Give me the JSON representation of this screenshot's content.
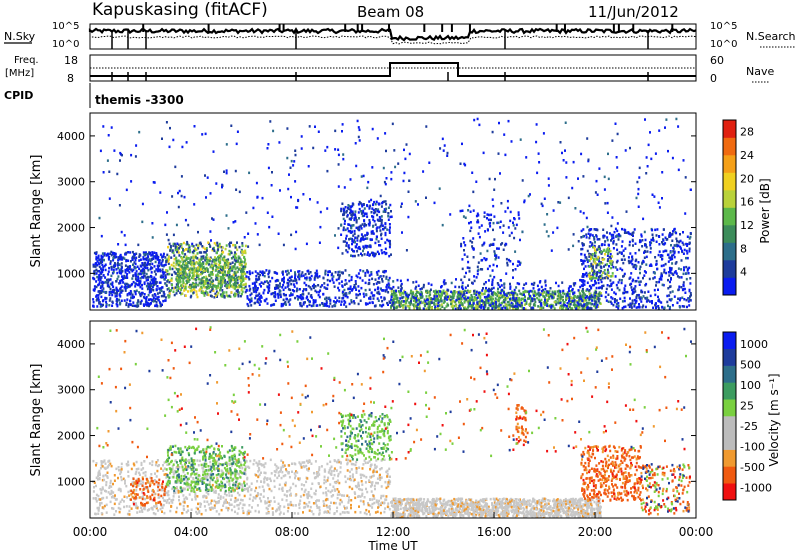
{
  "header": {
    "station": "Kapuskasing (fitACF)",
    "beam": "Beam 08",
    "date": "11/Jun/2012"
  },
  "top_panel": {
    "left_label": "N.Sky",
    "left_ticks": [
      "10^5",
      "10^0"
    ],
    "right_label": "N.Search",
    "right_ticks": [
      "10^5",
      "10^0"
    ]
  },
  "freq_panel": {
    "left_label_1": "Freq.",
    "left_label_2": "[MHz]",
    "left_ticks": [
      "18",
      "8"
    ],
    "right_label": "Nave",
    "right_ticks": [
      "60",
      "0"
    ]
  },
  "cpid": {
    "label": "CPID",
    "value": "themis -3300"
  },
  "colors": {
    "power_scale": [
      "#0a1cf0",
      "#1e3c9c",
      "#2d6e8a",
      "#3c8c5a",
      "#5cb84a",
      "#b9d23a",
      "#f0d020",
      "#f5a018",
      "#f06a10",
      "#e02010"
    ],
    "velocity_scale": [
      "#f01010",
      "#f05a10",
      "#f09a30",
      "#bcbcbc",
      "#bcbcbc",
      "#7ad040",
      "#3c9c60",
      "#2d6e8a",
      "#1e3c9c",
      "#0a1cf0"
    ]
  },
  "chart_data": [
    {
      "type": "heatmap",
      "name": "power",
      "ylabel": "Slant Range [km]",
      "yticks": [
        "1000",
        "2000",
        "3000",
        "4000"
      ],
      "ylim": [
        200,
        4500
      ],
      "xlim": [
        "00:00",
        "24:00"
      ],
      "colorbar_label": "Power [dB]",
      "colorbar_ticks": [
        "4",
        "8",
        "12",
        "16",
        "20",
        "24",
        "28"
      ],
      "colorbar_range": [
        0,
        30
      ]
    },
    {
      "type": "heatmap",
      "name": "velocity",
      "ylabel": "Slant Range [km]",
      "yticks": [
        "1000",
        "2000",
        "3000",
        "4000"
      ],
      "ylim": [
        200,
        4500
      ],
      "xlabel": "Time UT",
      "xticks": [
        "00:00",
        "04:00",
        "08:00",
        "12:00",
        "16:00",
        "20:00",
        "00:00"
      ],
      "colorbar_label": "Velocity [m s⁻¹]",
      "colorbar_ticks": [
        "1000",
        "500",
        "100",
        "25",
        "-25",
        "-100",
        "-500",
        "-1000"
      ]
    }
  ]
}
